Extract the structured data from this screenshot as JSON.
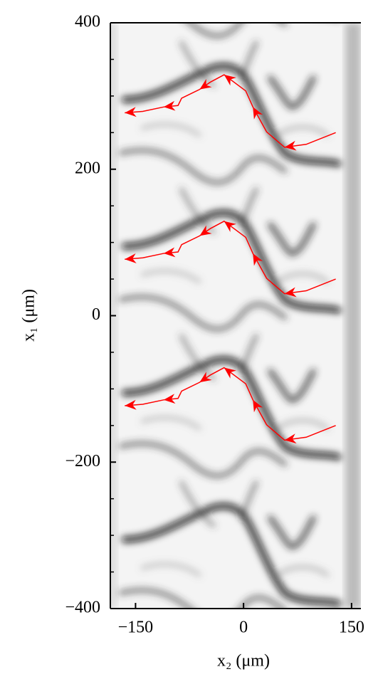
{
  "chart_data": {
    "type": "line",
    "x_label": "x₂ (μm)",
    "y_label": "x₁ (μm)",
    "x": [
      128,
      87,
      57,
      32,
      13,
      3,
      -27,
      -46,
      -61,
      -86,
      -91,
      -111,
      -140,
      -165
    ],
    "series": [
      {
        "color": "#ff0000",
        "values": [
          250,
          234,
          230,
          251,
          285,
          307,
          329,
          319,
          309,
          297,
          287,
          285,
          279,
          277
        ]
      },
      {
        "color": "#ff0000",
        "values": [
          50,
          34,
          30,
          51,
          85,
          107,
          129,
          119,
          109,
          97,
          87,
          85,
          79,
          77
        ]
      },
      {
        "color": "#ff0000",
        "values": [
          -150,
          -166,
          -170,
          -149,
          -115,
          -93,
          -71,
          -81,
          -91,
          -103,
          -113,
          -115,
          -121,
          -123
        ]
      }
    ],
    "xlim": [
      -185,
      163
    ],
    "ylim": [
      -400,
      400
    ],
    "xticks": [
      {
        "value": -150,
        "label": "−150"
      },
      0,
      150
    ],
    "yticks": [
      {
        "value": -400,
        "label": "−400"
      },
      {
        "value": -200,
        "label": "−200"
      },
      0,
      200,
      400
    ],
    "yminorticks": [
      -350,
      -300,
      -250,
      -150,
      -100,
      -50,
      50,
      100,
      150,
      250,
      300,
      350
    ]
  }
}
